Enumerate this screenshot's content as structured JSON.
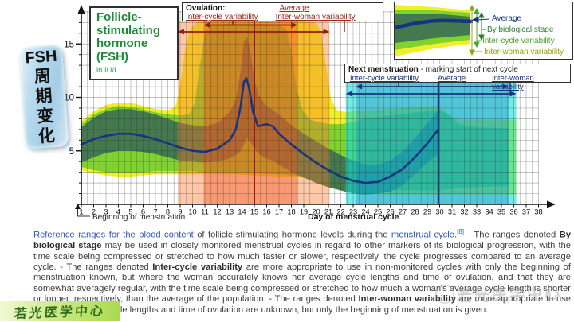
{
  "sidebar": {
    "abbr": "FSH",
    "chinese": "周期变化"
  },
  "title_box": {
    "title": "Follicle-stimulating hormone (FSH)",
    "unit": "in IU/L"
  },
  "ovulation_box": {
    "heading": "Ovulation:",
    "average_label": "Average",
    "inter_cycle_label": "Inter-cycle variability",
    "inter_woman_label": "Inter-woman variability"
  },
  "next_box": {
    "heading": "Next menstruation",
    "heading_rest": " - marking start of next cycle",
    "inter_cycle_label": "Inter-cycle variability",
    "average_label": "Average",
    "inter_woman_label": "Inter-woman variability"
  },
  "legend": {
    "average": "Average",
    "biological_stage": "By biological stage",
    "inter_cycle": "Inter-cycle variability",
    "inter_woman": "Inter-woman variability"
  },
  "caption": {
    "link1": "Reference ranges for the blood content",
    "t1": " of follicle-stimulating hormone levels during the ",
    "link2": "menstrual cycle",
    "dot": ".",
    "ref": "[8]",
    "t2": " - The ranges denoted ",
    "b1": "By biological stage",
    "t3": " may be used in closely monitored menstrual cycles in regard to other markers of its biological progression, with the time scale being compressed or stretched to how much faster or slower, respectively, the cycle progresses compared to an average cycle. - The ranges denoted ",
    "b2": "Inter-cycle variability",
    "t4": " are more appropriate to use in non-monitored cycles with only the beginning of menstruation known, but where the woman accurately knows her average cycle lengths and time of ovulation, and that they are somewhat averagely regular, with the time scale being compressed or stretched to how much a woman's average cycle length is shorter or longer, respectively, than the average of the population. - The ranges denoted ",
    "b3": "Inter-woman variability",
    "t5": " are more appropriate to use when the average cycle lengths and time of ovulation are unknown, but only the beginning of menstruation is given."
  },
  "watermarks": {
    "bottom_left": "若光医学中心",
    "bottom_right": "若光医学中心"
  },
  "chart_data": {
    "type": "area",
    "title": "Follicle-stimulating hormone (FSH)",
    "unit": "IU/L",
    "xlabel": "Day of menstrual cycle",
    "x_start_label": "Beginning of menstruation",
    "xlim": [
      1,
      38
    ],
    "ylim": [
      0,
      18
    ],
    "y_ticks": [
      5,
      10,
      15
    ],
    "grid": {
      "x_step": 0.5,
      "y_step": 1
    },
    "colors": {
      "inter_woman": "#f1ee2a",
      "inter_cycle": "#80d22f",
      "biological_stage": "#44784e",
      "average_line": "#16357e",
      "ovulation_outer": "rgba(249,120,40,0.40)",
      "ovulation_inner": "rgba(242,75,25,0.38)",
      "ovulation_line": "#931c05",
      "next_outer": "rgba(18,224,215,0.60)",
      "next_inner": "rgba(10,110,185,0.30)",
      "next_line": "#16357e"
    },
    "bands": [
      {
        "name": "inter_woman",
        "x": [
          1,
          2,
          3,
          4,
          5,
          6,
          7,
          8,
          8.6,
          9.0,
          9.4,
          9.8,
          10.3,
          11,
          13,
          15,
          17,
          19,
          20.0,
          20.4,
          20.8,
          21.2,
          21.6,
          22,
          22.5,
          23,
          24,
          26,
          28,
          29.9,
          30.6,
          31.5,
          33,
          35,
          36.2
        ],
        "upper": [
          7.8,
          8.7,
          9.3,
          9.5,
          9.5,
          9.2,
          8.9,
          8.8,
          9.1,
          11.0,
          14.5,
          16.4,
          17.0,
          17.1,
          17.2,
          17.2,
          17.2,
          17.1,
          17.0,
          16.2,
          13.0,
          10.0,
          8.9,
          8.7,
          8.6,
          8.7,
          8.8,
          8.9,
          9.1,
          9.2,
          8.5,
          7.9,
          7.9,
          7.9,
          7.9
        ],
        "lower": [
          3.2,
          2.9,
          2.7,
          2.6,
          2.6,
          2.7,
          2.8,
          2.8,
          2.8,
          2.8,
          2.8,
          2.8,
          2.8,
          2.8,
          2.8,
          2.7,
          2.6,
          2.5,
          2.4,
          2.4,
          2.3,
          2.2,
          2.0,
          1.7,
          1.4,
          1.1,
          1.0,
          0.9,
          0.9,
          0.9,
          0.9,
          0.9,
          0.9,
          0.9,
          0.9
        ]
      },
      {
        "name": "inter_cycle",
        "x": [
          1,
          2,
          3,
          4,
          5,
          6,
          7,
          8,
          9,
          9.7,
          10.2,
          10.6,
          11.0,
          11.5,
          13,
          15,
          17,
          17.6,
          18.0,
          18.4,
          18.9,
          19.5,
          20.2,
          21,
          22,
          23,
          24,
          26,
          28,
          29.9,
          30.6,
          31.5,
          33,
          35.6
        ],
        "upper": [
          7.5,
          8.4,
          8.9,
          9.2,
          9.1,
          8.9,
          8.6,
          8.4,
          8.3,
          8.4,
          9.5,
          13.0,
          16.0,
          16.7,
          16.9,
          16.9,
          16.8,
          16.4,
          14.5,
          11.0,
          8.8,
          7.9,
          7.7,
          7.5,
          7.5,
          7.7,
          8.0,
          8.3,
          8.6,
          8.8,
          8.5,
          7.5,
          7.2,
          7.1
        ],
        "lower": [
          3.5,
          3.2,
          3.0,
          2.9,
          2.9,
          3.0,
          3.1,
          3.1,
          3.1,
          3.1,
          3.1,
          3.0,
          3.0,
          3.0,
          3.0,
          2.9,
          2.8,
          2.8,
          2.7,
          2.7,
          2.6,
          2.5,
          2.4,
          2.1,
          1.7,
          1.5,
          1.4,
          1.3,
          1.3,
          1.3,
          1.4,
          1.5,
          1.6,
          1.7
        ]
      },
      {
        "name": "biological_stage",
        "x": [
          1,
          2,
          3,
          4,
          5,
          6,
          7,
          8,
          9,
          10,
          11,
          12,
          13,
          13.5,
          13.9,
          14.15,
          14.4,
          14.7,
          15.0,
          15.4,
          15.9,
          16.5,
          17,
          18,
          19,
          20,
          21,
          22,
          23,
          24,
          25,
          26,
          27,
          28,
          29,
          29.9
        ],
        "upper": [
          7.2,
          8.1,
          8.7,
          8.9,
          8.9,
          8.7,
          8.4,
          8.0,
          7.6,
          7.4,
          7.3,
          7.6,
          8.6,
          9.8,
          12.5,
          15.2,
          15.7,
          14.2,
          11.6,
          10.1,
          9.3,
          8.8,
          8.4,
          7.4,
          6.6,
          5.9,
          5.2,
          4.6,
          4.1,
          3.7,
          3.7,
          4.1,
          4.9,
          6.2,
          7.6,
          8.8
        ],
        "lower": [
          3.9,
          4.4,
          4.8,
          5.0,
          5.0,
          4.9,
          4.7,
          4.4,
          4.1,
          4.0,
          3.9,
          4.0,
          4.3,
          4.6,
          5.0,
          5.6,
          6.2,
          5.8,
          5.2,
          4.7,
          4.3,
          4.1,
          3.7,
          3.0,
          2.5,
          2.0,
          1.6,
          1.3,
          1.0,
          0.9,
          1.0,
          1.2,
          1.8,
          2.8,
          3.9,
          4.7
        ]
      }
    ],
    "average": {
      "x": [
        1,
        2,
        3,
        4,
        5,
        6,
        7,
        8,
        9,
        10,
        11,
        12,
        13,
        13.5,
        13.9,
        14.15,
        14.35,
        14.6,
        14.9,
        15.3,
        16,
        16.5,
        17,
        18,
        19,
        20,
        21,
        22,
        23,
        24,
        25,
        26,
        27,
        28,
        29,
        29.9
      ],
      "y": [
        5.6,
        6.1,
        6.4,
        6.6,
        6.6,
        6.4,
        6.1,
        5.7,
        5.3,
        5.0,
        4.9,
        5.2,
        6.0,
        7.0,
        9.2,
        11.4,
        11.8,
        10.8,
        8.6,
        7.3,
        7.5,
        7.3,
        6.6,
        5.6,
        4.7,
        3.9,
        3.2,
        2.6,
        2.2,
        2.0,
        2.1,
        2.6,
        3.3,
        4.4,
        5.7,
        7.0
      ]
    },
    "overlays": {
      "ovulation": {
        "outer_days": [
          8.8,
          21.1
        ],
        "inner_days": [
          10.9,
          18.5
        ],
        "average_day": 15.0,
        "top_value": 17.25
      },
      "next_menstruation": {
        "outer_days": [
          22.4,
          36.2
        ],
        "inner_days": [
          23.2,
          35.6
        ],
        "average_day": 29.9,
        "top_value": 11.8
      }
    }
  }
}
